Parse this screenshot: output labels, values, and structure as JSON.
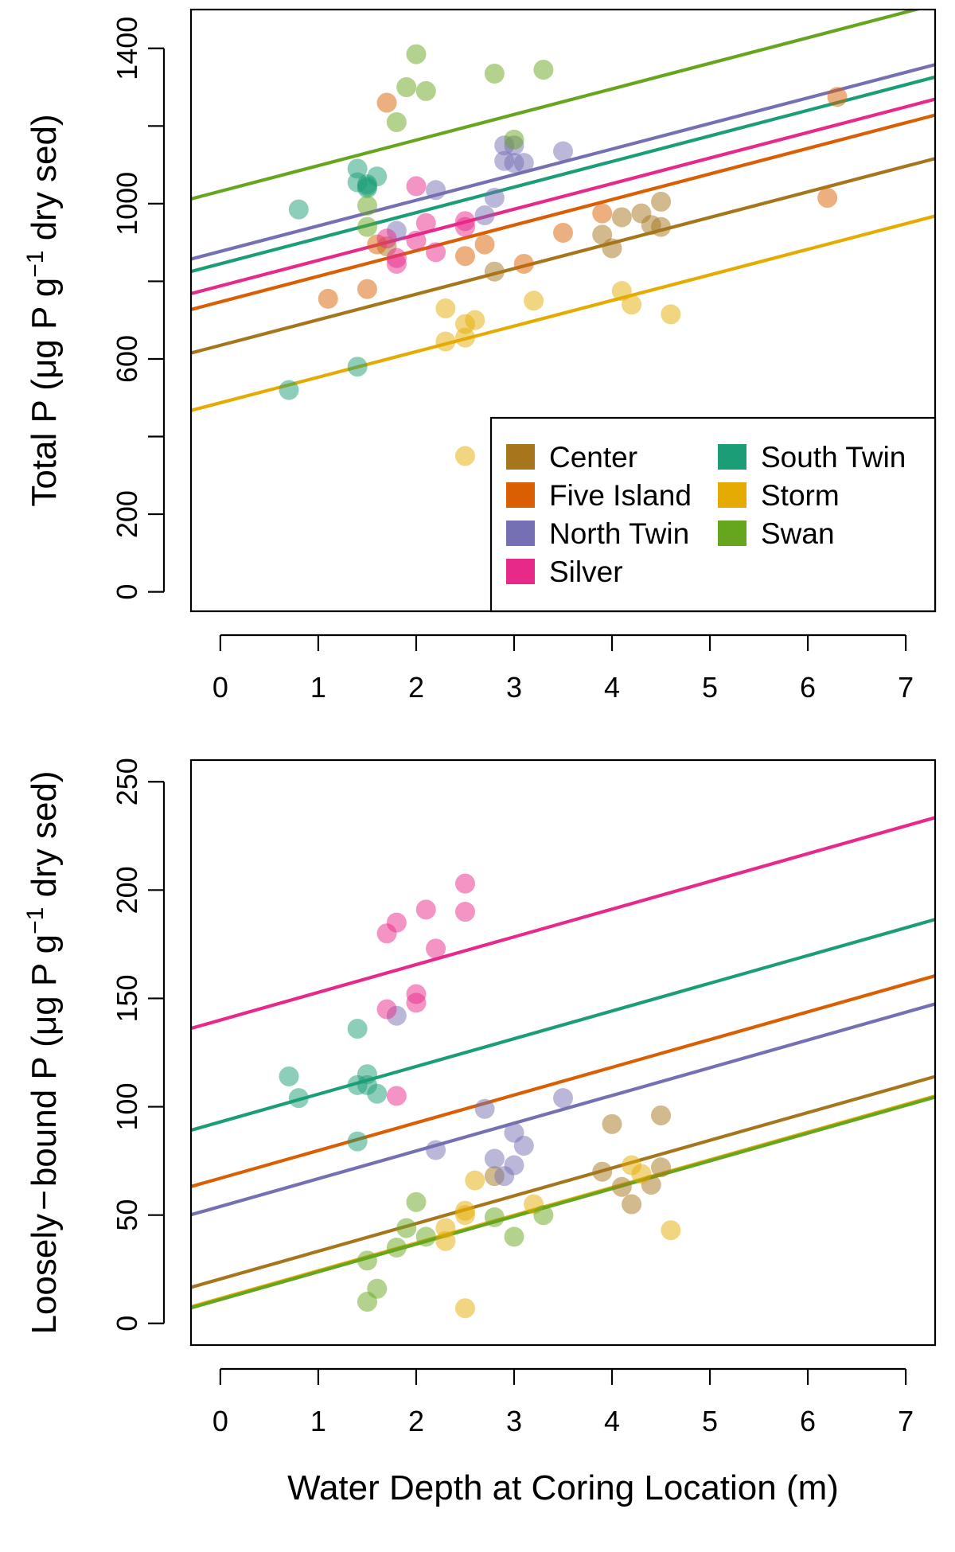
{
  "colors": {
    "Center": "#a6761d",
    "Five Island": "#d95f02",
    "North Twin": "#7570b3",
    "Silver": "#e7298a",
    "South Twin": "#1b9e77",
    "Storm": "#e6ab02",
    "Swan": "#66a61e"
  },
  "chart_data": [
    {
      "type": "scatter",
      "title": "",
      "xlabel": "",
      "ylabel_main": "Total P (",
      "ylabel_mu": "μ",
      "ylabel_after_mu": "g P g",
      "ylabel_sup": "−1",
      "ylabel_tail": " dry sed)",
      "xlim": [
        -0.3,
        7.3
      ],
      "ylim": [
        -50,
        1500
      ],
      "xticks": [
        0,
        1,
        2,
        3,
        4,
        5,
        6,
        7
      ],
      "xtick_labels": [
        "0",
        "1",
        "2",
        "3",
        "4",
        "5",
        "6",
        "7"
      ],
      "yticks": [
        0,
        200,
        400,
        600,
        800,
        1000,
        1200,
        1400
      ],
      "ytick_labels": [
        "0",
        "200",
        "",
        "600",
        "",
        "1000",
        "",
        "1400"
      ],
      "legend": {
        "placement": "bottom-right",
        "items": [
          "Center",
          "Five Island",
          "North Twin",
          "Silver",
          "South Twin",
          "Storm",
          "Swan"
        ]
      },
      "lines": [
        {
          "group": "Center",
          "intercept": 635,
          "slope": 65.9
        },
        {
          "group": "Five Island",
          "intercept": 747,
          "slope": 65.9
        },
        {
          "group": "North Twin",
          "intercept": 877,
          "slope": 65.9
        },
        {
          "group": "Silver",
          "intercept": 788,
          "slope": 65.9
        },
        {
          "group": "South Twin",
          "intercept": 845,
          "slope": 65.9
        },
        {
          "group": "Storm",
          "intercept": 487,
          "slope": 65.9
        },
        {
          "group": "Swan",
          "intercept": 1032,
          "slope": 65.9
        }
      ],
      "series": [
        {
          "group": "Center",
          "x": [
            1.7,
            2.8,
            3.9,
            4.0,
            4.1,
            4.3,
            4.4,
            4.5,
            4.5
          ],
          "y": [
            890,
            825,
            920,
            885,
            965,
            975,
            945,
            1005,
            940
          ]
        },
        {
          "group": "Five Island",
          "x": [
            1.1,
            1.5,
            1.6,
            1.7,
            2.5,
            2.7,
            3.1,
            3.5,
            3.9,
            6.2,
            6.3
          ],
          "y": [
            755,
            780,
            895,
            1260,
            865,
            895,
            845,
            925,
            975,
            1015,
            1275
          ]
        },
        {
          "group": "North Twin",
          "x": [
            1.8,
            2.2,
            2.7,
            2.8,
            2.9,
            2.9,
            3.0,
            3.0,
            3.1,
            3.5
          ],
          "y": [
            930,
            1035,
            970,
            1015,
            1150,
            1110,
            1105,
            1150,
            1105,
            1135
          ]
        },
        {
          "group": "Silver",
          "x": [
            1.7,
            1.8,
            1.8,
            2.0,
            2.0,
            2.1,
            2.2,
            2.5,
            2.5
          ],
          "y": [
            910,
            845,
            860,
            1045,
            905,
            950,
            875,
            955,
            940
          ]
        },
        {
          "group": "South Twin",
          "x": [
            0.7,
            0.8,
            1.4,
            1.4,
            1.4,
            1.5,
            1.5,
            1.5,
            1.6
          ],
          "y": [
            520,
            985,
            580,
            1090,
            1055,
            1045,
            1040,
            1050,
            1070
          ]
        },
        {
          "group": "Storm",
          "x": [
            2.3,
            2.3,
            2.5,
            2.5,
            2.5,
            2.6,
            3.2,
            4.1,
            4.2,
            4.6
          ],
          "y": [
            730,
            645,
            690,
            655,
            350,
            700,
            750,
            775,
            740,
            715
          ]
        },
        {
          "group": "Swan",
          "x": [
            1.5,
            1.5,
            1.8,
            1.9,
            2.0,
            2.1,
            2.8,
            3.0,
            3.3
          ],
          "y": [
            995,
            940,
            1210,
            1300,
            1385,
            1290,
            1335,
            1165,
            1345
          ]
        }
      ]
    },
    {
      "type": "scatter",
      "title": "",
      "xlabel": "Water Depth at Coring Location (m)",
      "ylabel_main": "Loosely",
      "ylabel_dash": "−",
      "ylabel_after_dash": "bound P (",
      "ylabel_mu": "μ",
      "ylabel_after_mu": "g P g",
      "ylabel_sup": "−1",
      "ylabel_tail": " dry sed)",
      "xlim": [
        -0.3,
        7.3
      ],
      "ylim": [
        -10,
        260
      ],
      "xticks": [
        0,
        1,
        2,
        3,
        4,
        5,
        6,
        7
      ],
      "xtick_labels": [
        "0",
        "1",
        "2",
        "3",
        "4",
        "5",
        "6",
        "7"
      ],
      "yticks": [
        0,
        50,
        100,
        150,
        200,
        250
      ],
      "ytick_labels": [
        "0",
        "50",
        "100",
        "150",
        "200",
        "250"
      ],
      "lines": [
        {
          "group": "Center",
          "intercept": 20.5,
          "slope": 12.8
        },
        {
          "group": "Five Island",
          "intercept": 67.0,
          "slope": 12.8
        },
        {
          "group": "North Twin",
          "intercept": 54.0,
          "slope": 12.8
        },
        {
          "group": "Silver",
          "intercept": 140.0,
          "slope": 12.8
        },
        {
          "group": "South Twin",
          "intercept": 93.0,
          "slope": 12.8
        },
        {
          "group": "Storm",
          "intercept": 11.5,
          "slope": 12.8
        },
        {
          "group": "Swan",
          "intercept": 11.0,
          "slope": 12.8
        }
      ],
      "series": [
        {
          "group": "Center",
          "x": [
            2.8,
            3.9,
            4.0,
            4.1,
            4.2,
            4.4,
            4.5,
            4.5
          ],
          "y": [
            68,
            70,
            92,
            63,
            55,
            64,
            72,
            96
          ]
        },
        {
          "group": "North Twin",
          "x": [
            1.8,
            2.2,
            2.7,
            2.8,
            2.9,
            3.0,
            3.0,
            3.1,
            3.5
          ],
          "y": [
            142,
            80,
            99,
            76,
            68,
            88,
            73,
            82,
            104
          ]
        },
        {
          "group": "Silver",
          "x": [
            1.7,
            1.7,
            1.8,
            1.8,
            2.0,
            2.0,
            2.1,
            2.2,
            2.5,
            2.5
          ],
          "y": [
            180,
            145,
            185,
            105,
            152,
            148,
            191,
            173,
            203,
            190
          ]
        },
        {
          "group": "South Twin",
          "x": [
            0.7,
            0.8,
            1.4,
            1.4,
            1.4,
            1.5,
            1.5,
            1.6
          ],
          "y": [
            114,
            104,
            136,
            110,
            84,
            115,
            110,
            106
          ]
        },
        {
          "group": "Storm",
          "x": [
            2.3,
            2.3,
            2.5,
            2.5,
            2.5,
            2.6,
            3.2,
            4.2,
            4.3,
            4.6
          ],
          "y": [
            44,
            38,
            52,
            50,
            7,
            66,
            55,
            73,
            69,
            43
          ]
        },
        {
          "group": "Swan",
          "x": [
            1.5,
            1.5,
            1.6,
            1.8,
            1.9,
            2.0,
            2.1,
            2.8,
            3.0,
            3.3
          ],
          "y": [
            29,
            10,
            16,
            35,
            44,
            56,
            40,
            49,
            40,
            50
          ]
        }
      ]
    }
  ]
}
